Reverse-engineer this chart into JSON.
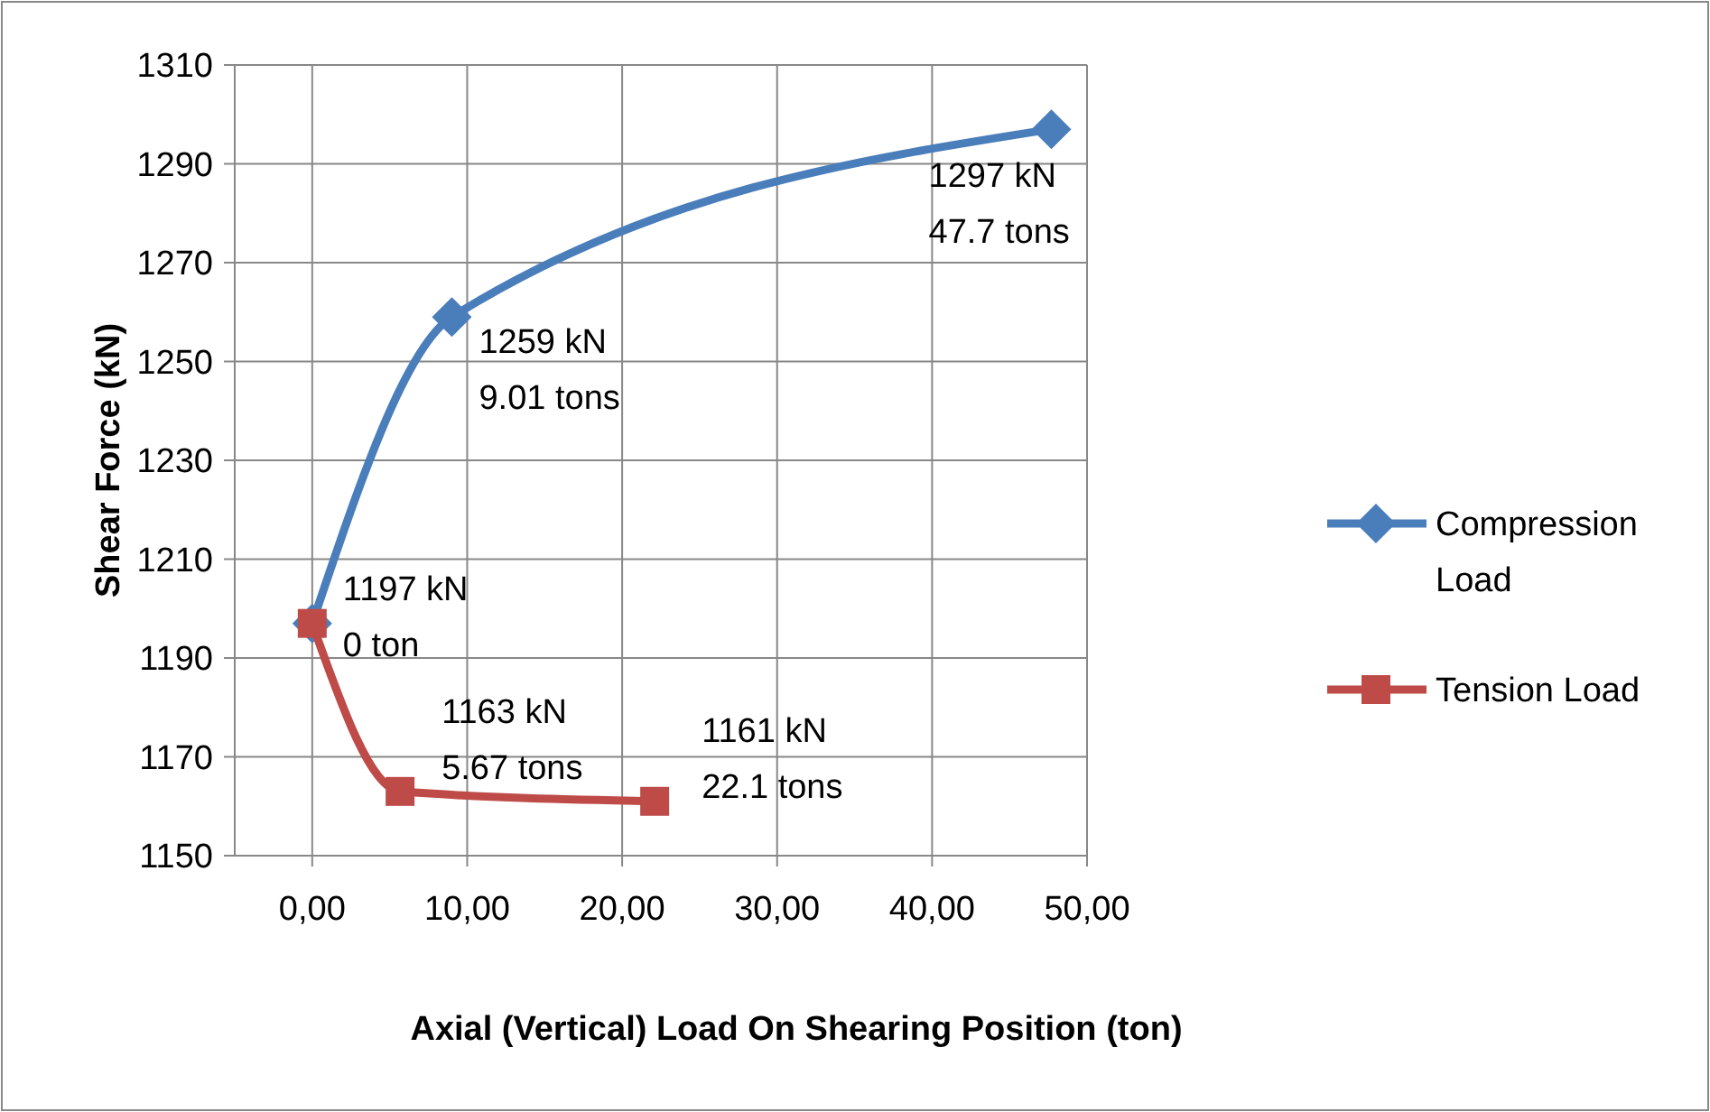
{
  "chart_data": {
    "type": "line",
    "xlabel": "Axial (Vertical) Load On Shearing Position (ton)",
    "ylabel": "Shear Force (kN)",
    "series": [
      {
        "name": "Compression Load",
        "color": "#4a7ebb",
        "marker": "diamond",
        "x": [
          0,
          9.01,
          47.7
        ],
        "values": [
          1197,
          1259,
          1297
        ]
      },
      {
        "name": "Tension Load",
        "color": "#be4b48",
        "marker": "square",
        "x": [
          0,
          5.67,
          22.1
        ],
        "values": [
          1197,
          1163,
          1161
        ]
      }
    ],
    "xlim": [
      -5,
      50
    ],
    "xticks": [
      {
        "value": 0,
        "label": "0,00"
      },
      {
        "value": 10,
        "label": "10,00"
      },
      {
        "value": 20,
        "label": "20,00"
      },
      {
        "value": 30,
        "label": "30,00"
      },
      {
        "value": 40,
        "label": "40,00"
      },
      {
        "value": 50,
        "label": "50,00"
      }
    ],
    "ylim": [
      1150,
      1310
    ],
    "yticks": [
      1150,
      1170,
      1190,
      1210,
      1230,
      1250,
      1270,
      1290,
      1310
    ],
    "grid": true,
    "legend": "right",
    "annotations": [
      {
        "text": "1297 kN\n47.7 tons",
        "x": 47.7,
        "y": 1297
      },
      {
        "text": "1259 kN\n9.01 tons",
        "x": 9.01,
        "y": 1259
      },
      {
        "text": "1197 kN\n0 ton",
        "x": 0,
        "y": 1197
      },
      {
        "text": "1163 kN\n5.67 tons",
        "x": 5.67,
        "y": 1163
      },
      {
        "text": "1161 kN\n22.1 tons",
        "x": 22.1,
        "y": 1161
      }
    ]
  }
}
